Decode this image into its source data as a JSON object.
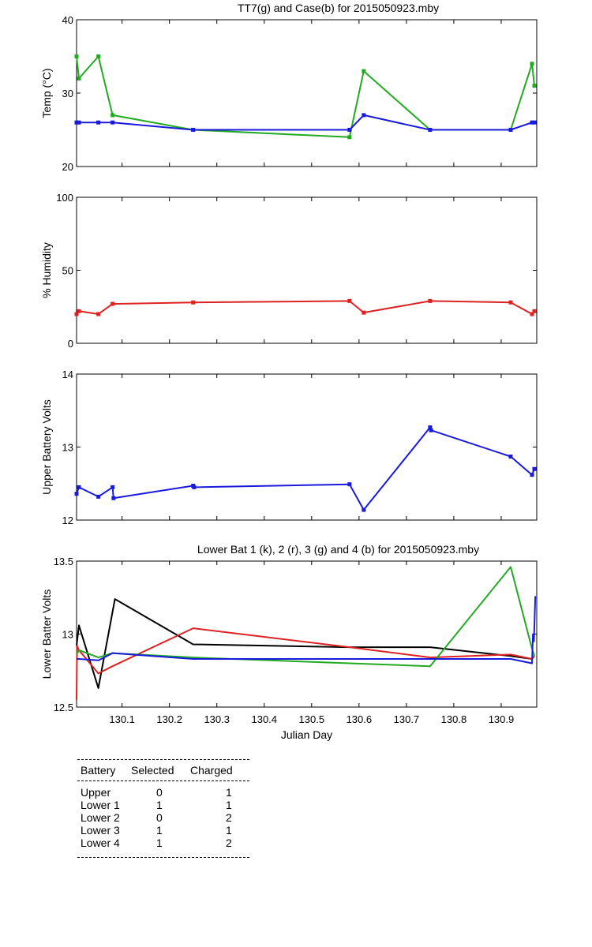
{
  "chart_data": [
    {
      "type": "line",
      "title": "TT7(g) and Case(b) for 2015050923.mby",
      "xlabel": "",
      "ylabel": "Temp  (°C)",
      "xlim": [
        130.004,
        130.975
      ],
      "ylim": [
        20,
        40
      ],
      "yticks": [
        "20",
        "30",
        "40"
      ],
      "xticks_shown": false,
      "series": [
        {
          "color": "#22aa22",
          "markers": true,
          "x": [
            130.004,
            130.009,
            130.05,
            130.08,
            130.25,
            130.58,
            130.61,
            130.75,
            130.92,
            130.965,
            130.97
          ],
          "y": [
            35,
            32,
            35,
            27,
            25,
            24,
            33,
            25,
            25,
            34,
            31
          ]
        },
        {
          "color": "#1a1adc",
          "markers": true,
          "x": [
            130.004,
            130.009,
            130.05,
            130.08,
            130.25,
            130.58,
            130.61,
            130.75,
            130.92,
            130.965,
            130.97
          ],
          "y": [
            26,
            26,
            26,
            26,
            25,
            25,
            27,
            25,
            25,
            26,
            26
          ]
        }
      ]
    },
    {
      "type": "line",
      "title": "",
      "xlabel": "",
      "ylabel": "% Humidity",
      "xlim": [
        130.004,
        130.975
      ],
      "ylim": [
        0,
        100
      ],
      "yticks": [
        "0",
        "50",
        "100"
      ],
      "xticks_shown": false,
      "series": [
        {
          "color": "#dd2222",
          "markers": true,
          "x": [
            130.004,
            130.009,
            130.05,
            130.08,
            130.25,
            130.58,
            130.61,
            130.75,
            130.92,
            130.965,
            130.97
          ],
          "y": [
            20,
            22,
            20,
            27,
            28,
            29,
            21,
            29,
            28,
            20,
            22
          ]
        }
      ]
    },
    {
      "type": "line",
      "title": "",
      "xlabel": "",
      "ylabel": "Upper Battery Volts",
      "xlim": [
        130.004,
        130.975
      ],
      "ylim": [
        12,
        14
      ],
      "yticks": [
        "12",
        "13",
        "14"
      ],
      "xticks_shown": false,
      "series": [
        {
          "color": "#1a1adc",
          "markers": true,
          "x": [
            130.004,
            130.009,
            130.05,
            130.08,
            130.082,
            130.25,
            130.252,
            130.58,
            130.61,
            130.75,
            130.752,
            130.92,
            130.965,
            130.97
          ],
          "y": [
            12.36,
            12.45,
            12.32,
            12.45,
            12.3,
            12.47,
            12.45,
            12.49,
            12.14,
            13.27,
            13.23,
            12.87,
            12.62,
            12.7
          ]
        }
      ]
    },
    {
      "type": "line",
      "title": "Lower Bat 1 (k), 2 (r), 3 (g) and 4 (b) for 2015050923.mby",
      "xlabel": "Julian Day",
      "ylabel": "Lower Batter Volts",
      "xlim": [
        130.004,
        130.975
      ],
      "ylim": [
        12.5,
        13.5
      ],
      "yticks": [
        "12.5",
        "13",
        "13.5"
      ],
      "xticks": [
        "130.1",
        "130.2",
        "130.3",
        "130.4",
        "130.5",
        "130.6",
        "130.7",
        "130.8",
        "130.9"
      ],
      "xticks_shown": true,
      "series": [
        {
          "color": "#000000",
          "markers": false,
          "x": [
            130.004,
            130.009,
            130.05,
            130.085,
            130.25,
            130.58,
            130.75,
            130.92,
            130.965,
            130.97
          ],
          "y": [
            12.92,
            13.06,
            12.63,
            13.24,
            12.93,
            12.91,
            12.91,
            12.85,
            12.83,
            12.85
          ]
        },
        {
          "color": "#dd2222",
          "markers": false,
          "x": [
            130.004,
            130.005,
            130.009,
            130.05,
            130.08,
            130.25,
            130.58,
            130.75,
            130.92,
            130.965,
            130.97
          ],
          "y": [
            12.55,
            12.92,
            12.89,
            12.73,
            12.78,
            13.04,
            12.91,
            12.84,
            12.86,
            12.83,
            12.85
          ]
        },
        {
          "color": "#22aa22",
          "markers": false,
          "x": [
            130.004,
            130.009,
            130.05,
            130.08,
            130.25,
            130.58,
            130.75,
            130.92,
            130.965,
            130.97
          ],
          "y": [
            12.86,
            12.89,
            12.84,
            12.87,
            12.84,
            12.8,
            12.78,
            13.46,
            12.9,
            12.85
          ]
        },
        {
          "color": "#1a1adc",
          "markers": false,
          "x": [
            130.004,
            130.009,
            130.05,
            130.08,
            130.25,
            130.58,
            130.75,
            130.92,
            130.965,
            130.967,
            130.969,
            130.97,
            130.972
          ],
          "y": [
            12.83,
            12.83,
            12.82,
            12.87,
            12.83,
            12.83,
            12.83,
            12.83,
            12.8,
            13.0,
            12.95,
            13.05,
            13.26
          ]
        }
      ]
    }
  ],
  "battery_table": {
    "headers": [
      "Battery",
      "Selected",
      "Charged"
    ],
    "rows": [
      {
        "battery": "Upper",
        "selected": "0",
        "charged": "1"
      },
      {
        "battery": "Lower 1",
        "selected": "1",
        "charged": "1"
      },
      {
        "battery": "Lower 2",
        "selected": "0",
        "charged": "2"
      },
      {
        "battery": "Lower 3",
        "selected": "1",
        "charged": "1"
      },
      {
        "battery": "Lower 4",
        "selected": "1",
        "charged": "2"
      }
    ]
  }
}
